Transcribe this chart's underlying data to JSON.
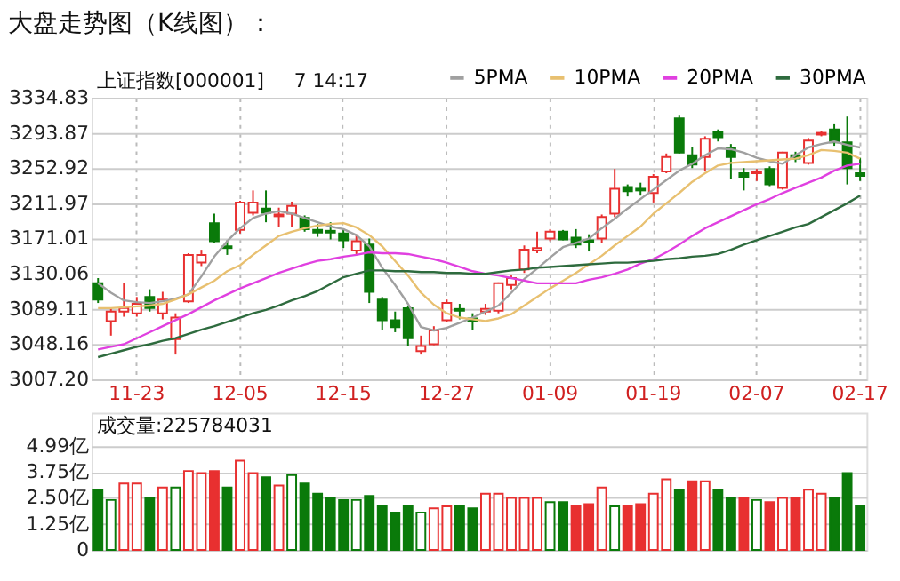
{
  "chart_data": [
    {
      "type": "candlestick",
      "title": "大盘走势图（K线图）：",
      "annotations": [
        "上证指数[000001]",
        "7 14:17"
      ],
      "categories": [
        null,
        null,
        null,
        "11-23",
        null,
        null,
        null,
        null,
        null,
        null,
        null,
        "12-05",
        null,
        null,
        null,
        null,
        null,
        null,
        null,
        "12-15",
        null,
        null,
        null,
        null,
        null,
        null,
        null,
        "12-27",
        null,
        null,
        null,
        null,
        null,
        null,
        null,
        "01-09",
        null,
        null,
        null,
        null,
        null,
        null,
        null,
        "01-19",
        null,
        null,
        null,
        null,
        null,
        null,
        null,
        "02-07",
        null,
        null,
        null,
        null,
        null,
        null,
        null,
        "02-17"
      ],
      "ohlc": [
        [
          3119,
          3125,
          3096,
          3100
        ],
        [
          3075,
          3090,
          3058,
          3086
        ],
        [
          3086,
          3119,
          3080,
          3090
        ],
        [
          3084,
          3103,
          3080,
          3095
        ],
        [
          3103,
          3112,
          3086,
          3090
        ],
        [
          3084,
          3109,
          3077,
          3100
        ],
        [
          3054,
          3084,
          3036,
          3079
        ],
        [
          3098,
          3154,
          3096,
          3152
        ],
        [
          3143,
          3158,
          3139,
          3152
        ],
        [
          3189,
          3200,
          3166,
          3168
        ],
        [
          3162,
          3169,
          3152,
          3160
        ],
        [
          3181,
          3215,
          3177,
          3213
        ],
        [
          3201,
          3227,
          3198,
          3213
        ],
        [
          3206,
          3227,
          3190,
          3201
        ],
        [
          3197,
          3207,
          3185,
          3199
        ],
        [
          3200,
          3214,
          3185,
          3209
        ],
        [
          3195,
          3198,
          3179,
          3182
        ],
        [
          3181,
          3188,
          3173,
          3178
        ],
        [
          3180,
          3190,
          3170,
          3178
        ],
        [
          3177,
          3182,
          3160,
          3169
        ],
        [
          3157,
          3176,
          3153,
          3168
        ],
        [
          3164,
          3171,
          3096,
          3109
        ],
        [
          3100,
          3103,
          3065,
          3076
        ],
        [
          3076,
          3086,
          3062,
          3068
        ],
        [
          3090,
          3093,
          3046,
          3055
        ],
        [
          3040,
          3058,
          3036,
          3046
        ],
        [
          3048,
          3069,
          3047,
          3064
        ],
        [
          3076,
          3100,
          3074,
          3096
        ],
        [
          3089,
          3095,
          3077,
          3087
        ],
        [
          3078,
          3084,
          3065,
          3075
        ],
        [
          3086,
          3095,
          3082,
          3089
        ],
        [
          3087,
          3120,
          3084,
          3119
        ],
        [
          3117,
          3128,
          3112,
          3125
        ],
        [
          3135,
          3163,
          3131,
          3158
        ],
        [
          3157,
          3179,
          3154,
          3160
        ],
        [
          3171,
          3182,
          3168,
          3179
        ],
        [
          3179,
          3181,
          3169,
          3170
        ],
        [
          3172,
          3182,
          3160,
          3164
        ],
        [
          3169,
          3176,
          3156,
          3167
        ],
        [
          3171,
          3199,
          3166,
          3196
        ],
        [
          3200,
          3252,
          3196,
          3229
        ],
        [
          3231,
          3234,
          3220,
          3226
        ],
        [
          3229,
          3236,
          3221,
          3227
        ],
        [
          3224,
          3246,
          3213,
          3243
        ],
        [
          3249,
          3270,
          3247,
          3266
        ],
        [
          3311,
          3314,
          3270,
          3271
        ],
        [
          3268,
          3278,
          3253,
          3257
        ],
        [
          3266,
          3290,
          3249,
          3287
        ],
        [
          3295,
          3298,
          3284,
          3289
        ],
        [
          3276,
          3281,
          3240,
          3266
        ],
        [
          3247,
          3253,
          3227,
          3243
        ],
        [
          3247,
          3252,
          3238,
          3249
        ],
        [
          3252,
          3255,
          3232,
          3234
        ],
        [
          3230,
          3272,
          3228,
          3271
        ],
        [
          3268,
          3272,
          3260,
          3264
        ],
        [
          3259,
          3288,
          3257,
          3285
        ],
        [
          3292,
          3296,
          3290,
          3294
        ],
        [
          3298,
          3304,
          3279,
          3283
        ],
        [
          3283,
          3313,
          3234,
          3253
        ],
        [
          3247,
          3265,
          3238,
          3244
        ]
      ],
      "colors": [
        "#0a7a0a",
        "#e83030",
        "#e83030",
        "#e83030",
        "#0a7a0a",
        "#e83030",
        "#e83030",
        "#e83030",
        "#e83030",
        "#0a7a0a",
        "#0a7a0a",
        "#e83030",
        "#e83030",
        "#0a7a0a",
        "#e83030",
        "#e83030",
        "#0a7a0a",
        "#0a7a0a",
        "#0a7a0a",
        "#0a7a0a",
        "#e83030",
        "#0a7a0a",
        "#0a7a0a",
        "#0a7a0a",
        "#0a7a0a",
        "#e83030",
        "#e83030",
        "#e83030",
        "#0a7a0a",
        "#0a7a0a",
        "#e83030",
        "#e83030",
        "#e83030",
        "#e83030",
        "#e83030",
        "#e83030",
        "#0a7a0a",
        "#0a7a0a",
        "#0a7a0a",
        "#e83030",
        "#e83030",
        "#0a7a0a",
        "#0a7a0a",
        "#e83030",
        "#e83030",
        "#0a7a0a",
        "#0a7a0a",
        "#e83030",
        "#0a7a0a",
        "#0a7a0a",
        "#0a7a0a",
        "#e83030",
        "#0a7a0a",
        "#e83030",
        "#0a7a0a",
        "#e83030",
        "#e83030",
        "#0a7a0a",
        "#0a7a0a",
        "#0a7a0a"
      ],
      "series": [
        {
          "name": "5PMA",
          "type": "line",
          "color": "#a0a0a0",
          "values": [
            3119,
            3108,
            3099,
            3097,
            3096,
            3098,
            3101,
            3106,
            3127,
            3150,
            3168,
            3183,
            3195,
            3200,
            3203,
            3200,
            3195,
            3190,
            3185,
            3182,
            3175,
            3162,
            3137,
            3117,
            3095,
            3068,
            3064,
            3067,
            3073,
            3079,
            3086,
            3093,
            3108,
            3124,
            3136,
            3149,
            3161,
            3166,
            3171,
            3183,
            3194,
            3206,
            3217,
            3228,
            3239,
            3250,
            3258,
            3268,
            3276,
            3275,
            3271,
            3265,
            3261,
            3258,
            3268,
            3277,
            3281,
            3284,
            3280,
            3277
          ]
        },
        {
          "name": "10PMA",
          "type": "line",
          "color": "#e8c070",
          "values": [
            3090,
            3090,
            3091,
            3092,
            3093,
            3095,
            3100,
            3106,
            3114,
            3122,
            3133,
            3140,
            3152,
            3163,
            3174,
            3179,
            3183,
            3186,
            3188,
            3189,
            3184,
            3175,
            3162,
            3145,
            3128,
            3108,
            3094,
            3084,
            3079,
            3077,
            3075,
            3078,
            3083,
            3093,
            3103,
            3113,
            3122,
            3131,
            3141,
            3151,
            3163,
            3174,
            3185,
            3200,
            3212,
            3224,
            3237,
            3247,
            3256,
            3259,
            3260,
            3261,
            3262,
            3263,
            3264,
            3268,
            3274,
            3273,
            3271,
            3264
          ]
        },
        {
          "name": "20PMA",
          "type": "line",
          "color": "#e040e0",
          "values": [
            3042,
            3045,
            3048,
            3055,
            3062,
            3069,
            3076,
            3083,
            3091,
            3099,
            3106,
            3113,
            3119,
            3125,
            3131,
            3136,
            3141,
            3145,
            3147,
            3150,
            3152,
            3155,
            3154,
            3154,
            3153,
            3150,
            3147,
            3143,
            3138,
            3133,
            3130,
            3128,
            3125,
            3122,
            3119,
            3119,
            3119,
            3119,
            3123,
            3126,
            3130,
            3135,
            3142,
            3147,
            3155,
            3164,
            3174,
            3183,
            3190,
            3197,
            3204,
            3211,
            3217,
            3224,
            3230,
            3236,
            3242,
            3250,
            3256,
            3258
          ]
        },
        {
          "name": "30PMA",
          "type": "line",
          "color": "#2e6b3e",
          "values": [
            3033,
            3037,
            3041,
            3045,
            3048,
            3052,
            3055,
            3060,
            3065,
            3069,
            3074,
            3079,
            3084,
            3088,
            3093,
            3099,
            3104,
            3110,
            3118,
            3126,
            3130,
            3134,
            3134,
            3133,
            3133,
            3132,
            3132,
            3131,
            3131,
            3130,
            3130,
            3132,
            3134,
            3135,
            3137,
            3138,
            3139,
            3140,
            3141,
            3142,
            3143,
            3143,
            3144,
            3145,
            3147,
            3148,
            3150,
            3151,
            3153,
            3158,
            3164,
            3169,
            3174,
            3179,
            3184,
            3188,
            3196,
            3204,
            3212,
            3221
          ]
        }
      ],
      "ylim": [
        3007.2,
        3334.83
      ],
      "yticks": [
        {
          "value": 3007.2,
          "label": "3007.20"
        },
        3048.16,
        3089.11,
        3130.06,
        3171.01,
        3211.97,
        3252.92,
        3293.87,
        3334.83
      ],
      "grid": true,
      "legend": "top right"
    },
    {
      "type": "bar",
      "annotations": [
        "成交量:225784031"
      ],
      "categories": [
        null,
        null,
        null,
        null,
        null,
        null,
        null,
        null,
        null,
        null,
        null,
        null,
        null,
        null,
        null,
        null,
        null,
        null,
        null,
        null,
        null,
        null,
        null,
        null,
        null,
        null,
        null,
        null,
        null,
        null,
        null,
        null,
        null,
        null,
        null,
        null,
        null,
        null,
        null,
        null,
        null,
        null,
        null,
        null,
        null,
        null,
        null,
        null,
        null,
        null,
        null,
        null,
        null,
        null,
        null,
        null,
        null,
        null,
        null,
        null
      ],
      "values": [
        2.9,
        2.4,
        3.2,
        3.2,
        2.5,
        3.0,
        3.0,
        3.8,
        3.7,
        3.8,
        3.0,
        4.3,
        3.7,
        3.5,
        3.1,
        3.6,
        3.2,
        2.7,
        2.5,
        2.4,
        2.4,
        2.6,
        2.1,
        1.8,
        2.1,
        1.8,
        2.0,
        2.1,
        2.1,
        2.0,
        2.7,
        2.7,
        2.5,
        2.5,
        2.5,
        2.3,
        2.3,
        2.1,
        2.2,
        3.0,
        2.1,
        2.1,
        2.2,
        2.7,
        3.4,
        2.9,
        3.3,
        3.3,
        2.9,
        2.5,
        2.5,
        2.4,
        2.3,
        2.5,
        2.5,
        2.9,
        2.7,
        2.5,
        3.7,
        2.1
      ],
      "colors": [
        "#0a7a0a",
        "#0a7a0a",
        "#e83030",
        "#e83030",
        "#0a7a0a",
        "#e83030",
        "#0a7a0a",
        "#e83030",
        "#e83030",
        "#e83030",
        "#0a7a0a",
        "#e83030",
        "#e83030",
        "#0a7a0a",
        "#e83030",
        "#0a7a0a",
        "#0a7a0a",
        "#0a7a0a",
        "#0a7a0a",
        "#0a7a0a",
        "#0a7a0a",
        "#0a7a0a",
        "#0a7a0a",
        "#0a7a0a",
        "#0a7a0a",
        "#0a7a0a",
        "#e83030",
        "#e83030",
        "#0a7a0a",
        "#0a7a0a",
        "#e83030",
        "#e83030",
        "#e83030",
        "#e83030",
        "#e83030",
        "#0a7a0a",
        "#0a7a0a",
        "#e83030",
        "#e83030",
        "#e83030",
        "#0a7a0a",
        "#e83030",
        "#e83030",
        "#e83030",
        "#e83030",
        "#0a7a0a",
        "#e83030",
        "#e83030",
        "#0a7a0a",
        "#0a7a0a",
        "#e83030",
        "#0a7a0a",
        "#e83030",
        "#e83030",
        "#e83030",
        "#e83030",
        "#e83030",
        "#0a7a0a",
        "#0a7a0a",
        "#0a7a0a"
      ],
      "ylim": [
        0,
        6.6
      ],
      "yticks": [
        0,
        {
          "value": 1.25,
          "label": "1.25亿"
        },
        {
          "value": 2.5,
          "label": "2.50亿"
        },
        {
          "value": 3.75,
          "label": "3.75亿"
        },
        {
          "value": 4.99,
          "label": "4.99亿"
        }
      ],
      "grid": true,
      "tick_labels": "y"
    }
  ]
}
